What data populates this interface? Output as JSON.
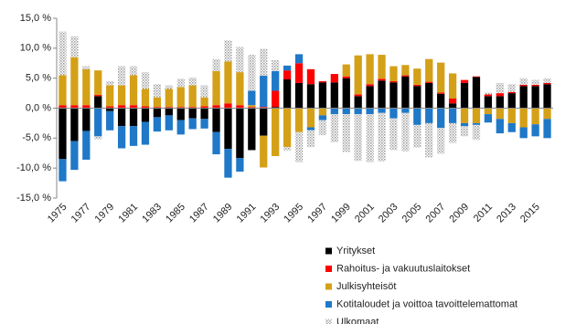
{
  "chart_data": {
    "type": "stacked-bar",
    "categories": [
      "1975",
      null,
      "1977",
      null,
      "1979",
      null,
      "1981",
      null,
      "1983",
      null,
      "1985",
      null,
      "1987",
      null,
      "1989",
      null,
      "1991",
      null,
      "1993",
      null,
      "1995",
      null,
      "1997",
      null,
      "1999",
      null,
      "2001",
      null,
      "2003",
      null,
      "2005",
      null,
      "2007",
      null,
      "2009",
      null,
      "2011",
      null,
      "2013",
      null,
      "2015",
      null
    ],
    "series": [
      {
        "name": "Yritykset",
        "color": "#000000",
        "values": [
          -8.5,
          -5.5,
          -3.8,
          2.0,
          -0.5,
          -3.0,
          -3.0,
          -2.3,
          -1.5,
          -1.2,
          -2.0,
          -1.7,
          -1.8,
          -4.0,
          -6.8,
          -8.3,
          -7.0,
          -4.6,
          0.2,
          4.8,
          4.2,
          4.0,
          4.3,
          4.3,
          5.0,
          2.0,
          3.7,
          4.6,
          4.3,
          5.3,
          3.7,
          4.2,
          2.4,
          0.8,
          4.2,
          5.2,
          2.0,
          2.0,
          2.5,
          3.7,
          3.7,
          4.0
        ]
      },
      {
        "name": "Rahoitus- ja vakuutuslaitokset",
        "color": "#ff0000",
        "values": [
          0.5,
          0.5,
          0.5,
          0.2,
          0.3,
          0.5,
          0.5,
          0.3,
          0.2,
          0.2,
          0.2,
          0.2,
          0.3,
          0.5,
          0.8,
          0.5,
          0.2,
          0.2,
          2.7,
          1.5,
          3.3,
          2.5,
          0.2,
          1.4,
          0.3,
          0.3,
          0.3,
          0.3,
          0.2,
          0.2,
          0.2,
          0.2,
          0.2,
          0.8,
          0.5,
          0.1,
          0.3,
          0.5,
          0.2,
          0.2,
          0.2,
          0.2
        ]
      },
      {
        "name": "Julkisyhteisöt",
        "color": "#d4a017",
        "values": [
          5.0,
          8.0,
          6.0,
          4.1,
          3.5,
          3.3,
          5.0,
          2.9,
          1.6,
          3.0,
          3.3,
          3.6,
          1.5,
          5.7,
          7.0,
          5.5,
          0.3,
          -5.3,
          -8.0,
          -6.5,
          -4.0,
          -3.2,
          -1.2,
          0.0,
          2.0,
          6.5,
          5.0,
          4.0,
          2.5,
          1.7,
          2.7,
          3.8,
          5.0,
          4.2,
          -2.5,
          -2.5,
          -1.0,
          -1.8,
          -2.5,
          -3.2,
          -2.7,
          -1.8
        ]
      },
      {
        "name": "Kotitaloudet ja voittoa tavoittelemattomat",
        "color": "#1f78c8",
        "values": [
          -3.7,
          -4.8,
          -4.8,
          -4.7,
          -3.2,
          -3.7,
          -3.3,
          -3.8,
          -2.4,
          -2.5,
          -2.4,
          -1.8,
          -1.6,
          -3.7,
          -4.8,
          -2.3,
          2.4,
          5.2,
          3.3,
          0.8,
          1.5,
          -0.5,
          -0.8,
          -1.0,
          -1.0,
          -1.0,
          -1.0,
          -0.8,
          -1.7,
          -0.8,
          -2.8,
          -2.5,
          -3.3,
          -2.5,
          -0.5,
          -0.3,
          -1.4,
          -2.4,
          -1.5,
          -1.8,
          -2.0,
          -3.2
        ]
      },
      {
        "name": "Ulkomaat",
        "color": "#c8c8c8",
        "pattern": "dots",
        "values": [
          7.3,
          3.5,
          0.5,
          -0.5,
          0.7,
          3.2,
          1.5,
          2.8,
          2.2,
          0.6,
          1.4,
          1.3,
          2.0,
          2.0,
          3.5,
          4.2,
          6.0,
          4.5,
          1.8,
          -0.6,
          -5.0,
          -2.8,
          -2.5,
          -4.7,
          -6.3,
          -7.8,
          -8.0,
          -8.1,
          -5.3,
          -6.4,
          -3.8,
          -5.7,
          -4.3,
          -3.3,
          -1.7,
          -2.5,
          0.3,
          1.7,
          1.3,
          1.1,
          0.8,
          0.8
        ]
      }
    ],
    "ylim": [
      -15,
      15
    ],
    "yticks": [
      {
        "value": -15,
        "label": "-15,0 %"
      },
      {
        "value": -10,
        "label": "-10,0 %"
      },
      {
        "value": -5,
        "label": "-5,0 %"
      },
      {
        "value": 0,
        "label": "0,0 %"
      },
      {
        "value": 5,
        "label": "5,0 %"
      },
      {
        "value": 10,
        "label": "10,0 %"
      },
      {
        "value": 15,
        "label": "15,0 %"
      }
    ],
    "grid": false,
    "legend": "bottom-right"
  }
}
